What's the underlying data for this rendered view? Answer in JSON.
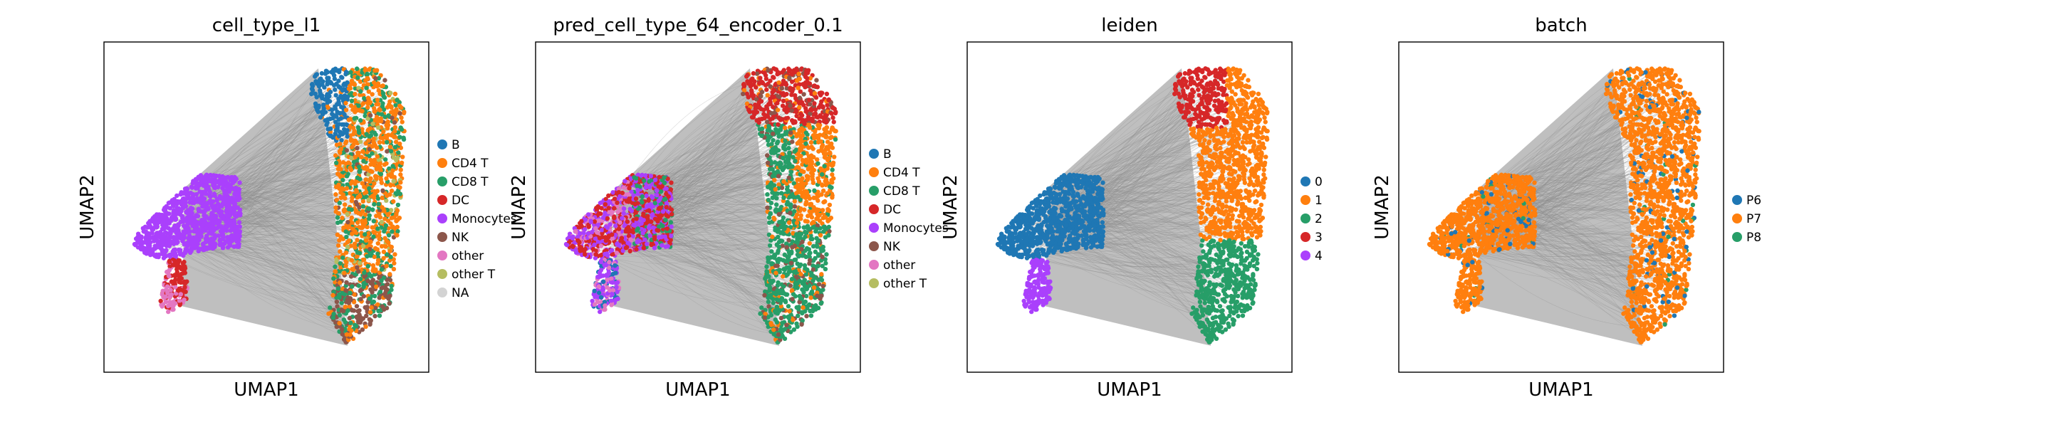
{
  "chart_data": [
    {
      "type": "scatter",
      "title": "cell_type_l1",
      "xlabel": "UMAP1",
      "ylabel": "UMAP2",
      "legend_placement": "right",
      "legend": [
        {
          "name": "B",
          "color": "#1f77b4"
        },
        {
          "name": "CD4 T",
          "color": "#ff7f0e"
        },
        {
          "name": "CD8 T",
          "color": "#279e68"
        },
        {
          "name": "DC",
          "color": "#d62728"
        },
        {
          "name": "Monocytes",
          "color": "#aa40fc"
        },
        {
          "name": "NK",
          "color": "#8c564b"
        },
        {
          "name": "other",
          "color": "#e377c2"
        },
        {
          "name": "other T",
          "color": "#b5bd61"
        },
        {
          "name": "NA",
          "color": "#d3d3d3"
        }
      ]
    },
    {
      "type": "scatter",
      "title": "pred_cell_type_64_encoder_0.1",
      "xlabel": "UMAP1",
      "ylabel": "UMAP2",
      "legend_placement": "right",
      "legend": [
        {
          "name": "B",
          "color": "#1f77b4"
        },
        {
          "name": "CD4 T",
          "color": "#ff7f0e"
        },
        {
          "name": "CD8 T",
          "color": "#279e68"
        },
        {
          "name": "DC",
          "color": "#d62728"
        },
        {
          "name": "Monocytes",
          "color": "#aa40fc"
        },
        {
          "name": "NK",
          "color": "#8c564b"
        },
        {
          "name": "other",
          "color": "#e377c2"
        },
        {
          "name": "other T",
          "color": "#b5bd61"
        }
      ]
    },
    {
      "type": "scatter",
      "title": "leiden",
      "xlabel": "UMAP1",
      "ylabel": "UMAP2",
      "legend_placement": "right",
      "legend": [
        {
          "name": "0",
          "color": "#1f77b4"
        },
        {
          "name": "1",
          "color": "#ff7f0e"
        },
        {
          "name": "2",
          "color": "#279e68"
        },
        {
          "name": "3",
          "color": "#d62728"
        },
        {
          "name": "4",
          "color": "#aa40fc"
        }
      ]
    },
    {
      "type": "scatter",
      "title": "batch",
      "xlabel": "UMAP1",
      "ylabel": "UMAP2",
      "legend_placement": "right",
      "legend": [
        {
          "name": "P6",
          "color": "#1f77b4"
        },
        {
          "name": "P7",
          "color": "#ff7f0e"
        },
        {
          "name": "P8",
          "color": "#279e68"
        }
      ]
    }
  ],
  "colors": {
    "edges": "#8a8a8a",
    "frame": "#000000"
  }
}
